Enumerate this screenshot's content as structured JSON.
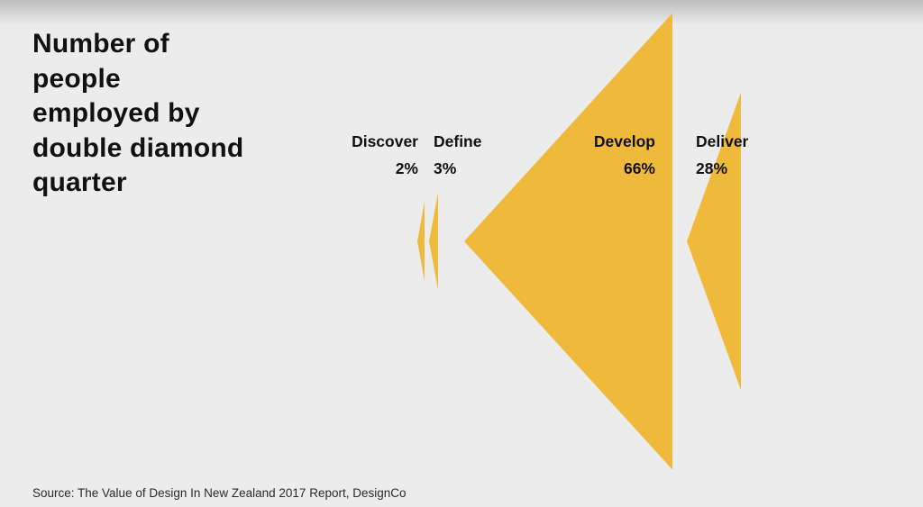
{
  "title": "Number of people employed by double diamond quarter",
  "source": "Source: The Value of Design In New Zealand 2017 Report, DesignCo",
  "colors": {
    "accent": "#efb93b",
    "text": "#111111",
    "background": "#ececec"
  },
  "chart_data": {
    "type": "other",
    "title": "Number of people employed by double diamond quarter",
    "categories": [
      "Discover",
      "Define",
      "Develop",
      "Deliver"
    ],
    "values": [
      2,
      3,
      66,
      28
    ],
    "value_labels": [
      "2%",
      "3%",
      "66%",
      "28%"
    ],
    "unit": "%",
    "shapes": [
      "left-pointing triangle",
      "right-pointing triangle",
      "left-pointing triangle",
      "right-pointing triangle"
    ]
  }
}
